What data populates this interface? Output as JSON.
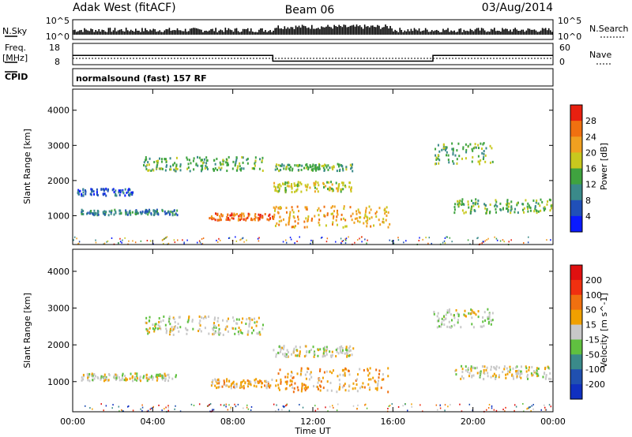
{
  "header": {
    "station": "Adak West (fitACF)",
    "beam": "Beam 06",
    "date": "03/Aug/2014"
  },
  "panels": {
    "nsky_label": "N.Sky",
    "nsearch_label": "N.Search",
    "freq_label_line1": "Freq.",
    "freq_label_line2": "[MHz]",
    "nave_label": "Nave",
    "cpid_label": "CPID",
    "cpid_text": "normalsound (fast) 157 RF",
    "nsky_ticks": [
      "10^5",
      "10^0"
    ],
    "nsearch_ticks": [
      "10^5",
      "10^0"
    ],
    "freq_ticks": [
      "18",
      "8"
    ],
    "nave_ticks": [
      "60",
      "0"
    ]
  },
  "chart_data": [
    {
      "type": "heatmap",
      "name": "power",
      "ylabel": "Slant Range [km]",
      "xlabel": "Time UT",
      "xticks": [
        "00:00",
        "04:00",
        "08:00",
        "12:00",
        "16:00",
        "20:00",
        "00:00"
      ],
      "yticks": [
        "1000",
        "2000",
        "3000",
        "4000"
      ],
      "xlim": [
        0,
        24
      ],
      "ylim": [
        180,
        4600
      ],
      "colorbar": {
        "label": "Power [dB]",
        "ticks": [
          "4",
          "8",
          "12",
          "16",
          "20",
          "24",
          "28"
        ],
        "colors": [
          "#0a1aff",
          "#2050b8",
          "#3a8a8a",
          "#3fa33f",
          "#c8c81e",
          "#f0a020",
          "#f07010",
          "#e82010"
        ]
      },
      "echo_bands": [
        {
          "t0": 0.4,
          "t1": 5.2,
          "r0": 1050,
          "r1": 1200,
          "level": 2
        },
        {
          "t0": 0.2,
          "t1": 3.0,
          "r0": 1600,
          "r1": 1800,
          "level": 1
        },
        {
          "t0": 3.5,
          "t1": 9.5,
          "r0": 2300,
          "r1": 2700,
          "level": 3
        },
        {
          "t0": 6.8,
          "t1": 10.0,
          "r0": 900,
          "r1": 1100,
          "level": 6
        },
        {
          "t0": 10.0,
          "t1": 15.8,
          "r0": 700,
          "r1": 1300,
          "level": 5
        },
        {
          "t0": 10.0,
          "t1": 14.0,
          "r0": 1700,
          "r1": 2000,
          "level": 4
        },
        {
          "t0": 10.0,
          "t1": 14.0,
          "r0": 2300,
          "r1": 2500,
          "level": 3
        },
        {
          "t0": 18.0,
          "t1": 21.0,
          "r0": 2500,
          "r1": 3100,
          "level": 3
        },
        {
          "t0": 19.0,
          "t1": 23.9,
          "r0": 1100,
          "r1": 1500,
          "level": 3
        }
      ]
    },
    {
      "type": "heatmap",
      "name": "velocity",
      "ylabel": "Slant Range [km]",
      "xlabel": "Time UT",
      "xticks": [
        "00:00",
        "04:00",
        "08:00",
        "12:00",
        "16:00",
        "20:00",
        "00:00"
      ],
      "yticks": [
        "1000",
        "2000",
        "3000",
        "4000"
      ],
      "xlim": [
        0,
        24
      ],
      "ylim": [
        180,
        4600
      ],
      "colorbar": {
        "label": "Velocity [m s^-1]",
        "ticks": [
          "200",
          "100",
          "50",
          "15",
          "-15",
          "-50",
          "-100",
          "-200"
        ],
        "colors": [
          "#1030c0",
          "#2050b0",
          "#3a8a8a",
          "#60c040",
          "#c8c8c8",
          "#f0a000",
          "#f07010",
          "#f03010",
          "#e01010"
        ]
      },
      "echo_bands": [
        {
          "t0": 0.4,
          "t1": 5.2,
          "r0": 1050,
          "r1": 1250,
          "level": 4
        },
        {
          "t0": 3.5,
          "t1": 9.5,
          "r0": 2300,
          "r1": 2800,
          "level": 4
        },
        {
          "t0": 6.8,
          "t1": 10.0,
          "r0": 850,
          "r1": 1100,
          "level": 5
        },
        {
          "t0": 10.0,
          "t1": 15.8,
          "r0": 750,
          "r1": 1400,
          "level": 5
        },
        {
          "t0": 10.0,
          "t1": 14.0,
          "r0": 1700,
          "r1": 2000,
          "level": 4
        },
        {
          "t0": 18.0,
          "t1": 21.0,
          "r0": 2500,
          "r1": 3000,
          "level": 4
        },
        {
          "t0": 19.0,
          "t1": 23.9,
          "r0": 1100,
          "r1": 1450,
          "level": 4
        }
      ]
    }
  ],
  "freq_series": {
    "t": [
      0,
      10,
      10,
      18,
      18,
      24
    ],
    "mhz": [
      14.5,
      14.5,
      10.5,
      10.5,
      14.5,
      14.5
    ]
  }
}
